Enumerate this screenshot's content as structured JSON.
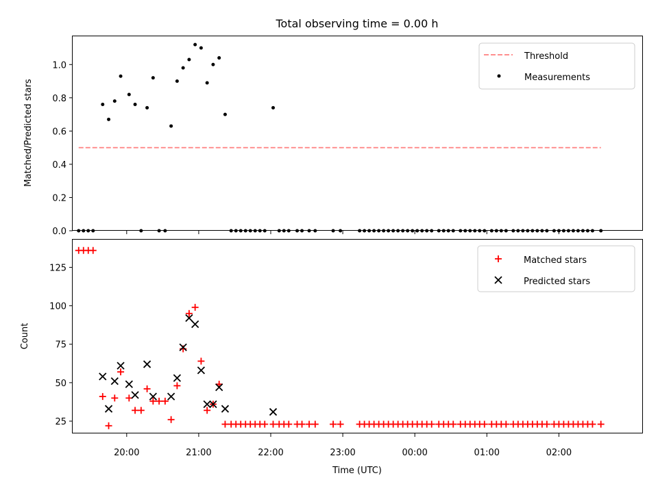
{
  "chart_data": [
    {
      "type": "scatter",
      "title": "Total observing time = 0.00 h",
      "xlabel": "",
      "ylabel": "Matched/Predicted stars",
      "x_range": [
        "19:15",
        "03:10"
      ],
      "ylim": [
        0,
        1.17
      ],
      "yticks": [
        0.0,
        0.2,
        0.4,
        0.6,
        0.8,
        1.0
      ],
      "ytick_labels": [
        "0.0",
        "0.2",
        "0.4",
        "0.6",
        "0.8",
        "1.0"
      ],
      "xticks": [
        "20:00",
        "21:00",
        "22:00",
        "23:00",
        "00:00",
        "01:00",
        "02:00"
      ],
      "grid": false,
      "legend_position": "top-right",
      "series": [
        {
          "name": "Threshold",
          "style": "dashed-line",
          "color": "#ff7f7f",
          "points": [
            {
              "x": "19:20",
              "y": 0.5
            },
            {
              "x": "02:35",
              "y": 0.5
            }
          ]
        },
        {
          "name": "Measurements",
          "style": "dot",
          "color": "#000000",
          "points": [
            {
              "x": "19:20",
              "y": 0
            },
            {
              "x": "19:24",
              "y": 0
            },
            {
              "x": "19:28",
              "y": 0
            },
            {
              "x": "19:32",
              "y": 0
            },
            {
              "x": "19:40",
              "y": 0.76
            },
            {
              "x": "19:45",
              "y": 0.67
            },
            {
              "x": "19:50",
              "y": 0.78
            },
            {
              "x": "19:55",
              "y": 0.93
            },
            {
              "x": "20:02",
              "y": 0.82
            },
            {
              "x": "20:07",
              "y": 0.76
            },
            {
              "x": "20:12",
              "y": 0
            },
            {
              "x": "20:17",
              "y": 0.74
            },
            {
              "x": "20:22",
              "y": 0.92
            },
            {
              "x": "20:27",
              "y": 0
            },
            {
              "x": "20:32",
              "y": 0
            },
            {
              "x": "20:37",
              "y": 0.63
            },
            {
              "x": "20:42",
              "y": 0.9
            },
            {
              "x": "20:47",
              "y": 0.98
            },
            {
              "x": "20:52",
              "y": 1.03
            },
            {
              "x": "20:57",
              "y": 1.12
            },
            {
              "x": "21:02",
              "y": 1.1
            },
            {
              "x": "21:07",
              "y": 0.89
            },
            {
              "x": "21:12",
              "y": 1.0
            },
            {
              "x": "21:17",
              "y": 1.04
            },
            {
              "x": "21:22",
              "y": 0.7
            },
            {
              "x": "21:27",
              "y": 0
            },
            {
              "x": "21:31",
              "y": 0
            },
            {
              "x": "21:35",
              "y": 0
            },
            {
              "x": "21:39",
              "y": 0
            },
            {
              "x": "21:43",
              "y": 0
            },
            {
              "x": "21:47",
              "y": 0
            },
            {
              "x": "21:51",
              "y": 0
            },
            {
              "x": "21:55",
              "y": 0
            },
            {
              "x": "22:02",
              "y": 0.74
            },
            {
              "x": "22:07",
              "y": 0
            },
            {
              "x": "22:11",
              "y": 0
            },
            {
              "x": "22:15",
              "y": 0
            },
            {
              "x": "22:22",
              "y": 0
            },
            {
              "x": "22:26",
              "y": 0
            },
            {
              "x": "22:32",
              "y": 0
            },
            {
              "x": "22:37",
              "y": 0
            },
            {
              "x": "22:52",
              "y": 0
            },
            {
              "x": "22:58",
              "y": 0
            },
            {
              "x": "23:14",
              "y": 0
            },
            {
              "x": "23:18",
              "y": 0
            },
            {
              "x": "23:22",
              "y": 0
            },
            {
              "x": "23:26",
              "y": 0
            },
            {
              "x": "23:30",
              "y": 0
            },
            {
              "x": "23:34",
              "y": 0
            },
            {
              "x": "23:38",
              "y": 0
            },
            {
              "x": "23:42",
              "y": 0
            },
            {
              "x": "23:46",
              "y": 0
            },
            {
              "x": "23:50",
              "y": 0
            },
            {
              "x": "23:54",
              "y": 0
            },
            {
              "x": "23:58",
              "y": 0
            },
            {
              "x": "00:02",
              "y": 0
            },
            {
              "x": "00:06",
              "y": 0
            },
            {
              "x": "00:10",
              "y": 0
            },
            {
              "x": "00:14",
              "y": 0
            },
            {
              "x": "00:20",
              "y": 0
            },
            {
              "x": "00:24",
              "y": 0
            },
            {
              "x": "00:28",
              "y": 0
            },
            {
              "x": "00:32",
              "y": 0
            },
            {
              "x": "00:38",
              "y": 0
            },
            {
              "x": "00:42",
              "y": 0
            },
            {
              "x": "00:46",
              "y": 0
            },
            {
              "x": "00:50",
              "y": 0
            },
            {
              "x": "00:54",
              "y": 0
            },
            {
              "x": "00:58",
              "y": 0
            },
            {
              "x": "01:04",
              "y": 0
            },
            {
              "x": "01:08",
              "y": 0
            },
            {
              "x": "01:12",
              "y": 0
            },
            {
              "x": "01:16",
              "y": 0
            },
            {
              "x": "01:22",
              "y": 0
            },
            {
              "x": "01:26",
              "y": 0
            },
            {
              "x": "01:30",
              "y": 0
            },
            {
              "x": "01:34",
              "y": 0
            },
            {
              "x": "01:38",
              "y": 0
            },
            {
              "x": "01:42",
              "y": 0
            },
            {
              "x": "01:46",
              "y": 0
            },
            {
              "x": "01:50",
              "y": 0
            },
            {
              "x": "01:56",
              "y": 0
            },
            {
              "x": "02:00",
              "y": 0
            },
            {
              "x": "02:04",
              "y": 0
            },
            {
              "x": "02:08",
              "y": 0
            },
            {
              "x": "02:12",
              "y": 0
            },
            {
              "x": "02:16",
              "y": 0
            },
            {
              "x": "02:20",
              "y": 0
            },
            {
              "x": "02:24",
              "y": 0
            },
            {
              "x": "02:28",
              "y": 0
            },
            {
              "x": "02:35",
              "y": 0
            }
          ]
        }
      ]
    },
    {
      "type": "scatter",
      "title": "",
      "xlabel": "Time (UTC)",
      "ylabel": "Count",
      "x_range": [
        "19:15",
        "03:10"
      ],
      "ylim": [
        17,
        143
      ],
      "yticks": [
        25,
        50,
        75,
        100,
        125
      ],
      "ytick_labels": [
        "25",
        "50",
        "75",
        "100",
        "125"
      ],
      "xticks": [
        "20:00",
        "21:00",
        "22:00",
        "23:00",
        "00:00",
        "01:00",
        "02:00"
      ],
      "grid": false,
      "legend_position": "top-right",
      "series": [
        {
          "name": "Matched stars",
          "marker": "plus",
          "color": "#ff0000",
          "points": [
            {
              "x": "19:20",
              "y": 136
            },
            {
              "x": "19:24",
              "y": 136
            },
            {
              "x": "19:28",
              "y": 136
            },
            {
              "x": "19:32",
              "y": 136
            },
            {
              "x": "19:40",
              "y": 41
            },
            {
              "x": "19:45",
              "y": 22
            },
            {
              "x": "19:50",
              "y": 40
            },
            {
              "x": "19:55",
              "y": 57
            },
            {
              "x": "20:02",
              "y": 40
            },
            {
              "x": "20:07",
              "y": 32
            },
            {
              "x": "20:12",
              "y": 32
            },
            {
              "x": "20:17",
              "y": 46
            },
            {
              "x": "20:22",
              "y": 38
            },
            {
              "x": "20:27",
              "y": 38
            },
            {
              "x": "20:32",
              "y": 38
            },
            {
              "x": "20:37",
              "y": 26
            },
            {
              "x": "20:42",
              "y": 48
            },
            {
              "x": "20:47",
              "y": 72
            },
            {
              "x": "20:52",
              "y": 95
            },
            {
              "x": "20:57",
              "y": 99
            },
            {
              "x": "21:02",
              "y": 64
            },
            {
              "x": "21:07",
              "y": 32
            },
            {
              "x": "21:12",
              "y": 36
            },
            {
              "x": "21:17",
              "y": 49
            },
            {
              "x": "21:22",
              "y": 23
            },
            {
              "x": "21:27",
              "y": 23
            },
            {
              "x": "21:31",
              "y": 23
            },
            {
              "x": "21:35",
              "y": 23
            },
            {
              "x": "21:39",
              "y": 23
            },
            {
              "x": "21:43",
              "y": 23
            },
            {
              "x": "21:47",
              "y": 23
            },
            {
              "x": "21:51",
              "y": 23
            },
            {
              "x": "21:55",
              "y": 23
            },
            {
              "x": "22:02",
              "y": 23
            },
            {
              "x": "22:07",
              "y": 23
            },
            {
              "x": "22:11",
              "y": 23
            },
            {
              "x": "22:15",
              "y": 23
            },
            {
              "x": "22:22",
              "y": 23
            },
            {
              "x": "22:26",
              "y": 23
            },
            {
              "x": "22:32",
              "y": 23
            },
            {
              "x": "22:37",
              "y": 23
            },
            {
              "x": "22:52",
              "y": 23
            },
            {
              "x": "22:58",
              "y": 23
            },
            {
              "x": "23:14",
              "y": 23
            },
            {
              "x": "23:18",
              "y": 23
            },
            {
              "x": "23:22",
              "y": 23
            },
            {
              "x": "23:26",
              "y": 23
            },
            {
              "x": "23:30",
              "y": 23
            },
            {
              "x": "23:34",
              "y": 23
            },
            {
              "x": "23:38",
              "y": 23
            },
            {
              "x": "23:42",
              "y": 23
            },
            {
              "x": "23:46",
              "y": 23
            },
            {
              "x": "23:50",
              "y": 23
            },
            {
              "x": "23:54",
              "y": 23
            },
            {
              "x": "23:58",
              "y": 23
            },
            {
              "x": "00:02",
              "y": 23
            },
            {
              "x": "00:06",
              "y": 23
            },
            {
              "x": "00:10",
              "y": 23
            },
            {
              "x": "00:14",
              "y": 23
            },
            {
              "x": "00:20",
              "y": 23
            },
            {
              "x": "00:24",
              "y": 23
            },
            {
              "x": "00:28",
              "y": 23
            },
            {
              "x": "00:32",
              "y": 23
            },
            {
              "x": "00:38",
              "y": 23
            },
            {
              "x": "00:42",
              "y": 23
            },
            {
              "x": "00:46",
              "y": 23
            },
            {
              "x": "00:50",
              "y": 23
            },
            {
              "x": "00:54",
              "y": 23
            },
            {
              "x": "00:58",
              "y": 23
            },
            {
              "x": "01:04",
              "y": 23
            },
            {
              "x": "01:08",
              "y": 23
            },
            {
              "x": "01:12",
              "y": 23
            },
            {
              "x": "01:16",
              "y": 23
            },
            {
              "x": "01:22",
              "y": 23
            },
            {
              "x": "01:26",
              "y": 23
            },
            {
              "x": "01:30",
              "y": 23
            },
            {
              "x": "01:34",
              "y": 23
            },
            {
              "x": "01:38",
              "y": 23
            },
            {
              "x": "01:42",
              "y": 23
            },
            {
              "x": "01:46",
              "y": 23
            },
            {
              "x": "01:50",
              "y": 23
            },
            {
              "x": "01:56",
              "y": 23
            },
            {
              "x": "02:00",
              "y": 23
            },
            {
              "x": "02:04",
              "y": 23
            },
            {
              "x": "02:08",
              "y": 23
            },
            {
              "x": "02:12",
              "y": 23
            },
            {
              "x": "02:16",
              "y": 23
            },
            {
              "x": "02:20",
              "y": 23
            },
            {
              "x": "02:24",
              "y": 23
            },
            {
              "x": "02:28",
              "y": 23
            },
            {
              "x": "02:35",
              "y": 23
            }
          ]
        },
        {
          "name": "Predicted stars",
          "marker": "x",
          "color": "#000000",
          "points": [
            {
              "x": "19:40",
              "y": 54
            },
            {
              "x": "19:45",
              "y": 33
            },
            {
              "x": "19:50",
              "y": 51
            },
            {
              "x": "19:55",
              "y": 61
            },
            {
              "x": "20:02",
              "y": 49
            },
            {
              "x": "20:07",
              "y": 42
            },
            {
              "x": "20:17",
              "y": 62
            },
            {
              "x": "20:22",
              "y": 41
            },
            {
              "x": "20:37",
              "y": 41
            },
            {
              "x": "20:42",
              "y": 53
            },
            {
              "x": "20:47",
              "y": 73
            },
            {
              "x": "20:52",
              "y": 92
            },
            {
              "x": "20:57",
              "y": 88
            },
            {
              "x": "21:02",
              "y": 58
            },
            {
              "x": "21:07",
              "y": 36
            },
            {
              "x": "21:12",
              "y": 36
            },
            {
              "x": "21:17",
              "y": 47
            },
            {
              "x": "21:22",
              "y": 33
            },
            {
              "x": "22:02",
              "y": 31
            }
          ]
        }
      ]
    }
  ]
}
